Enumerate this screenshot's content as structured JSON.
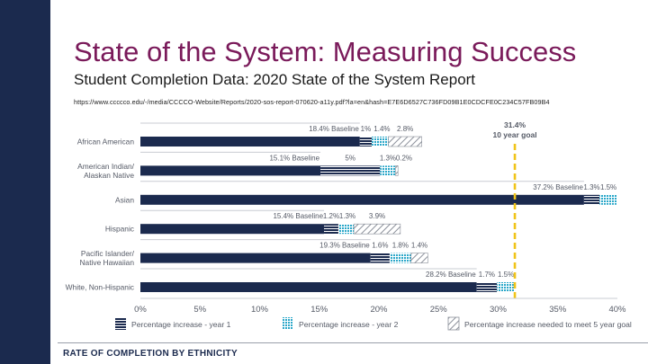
{
  "slide": {
    "title": "State of the System: Measuring Success",
    "subtitle": "Student Completion Data: 2020 State of the System Report",
    "url": "https://www.ccccco.edu/-/media/CCCCO-Website/Reports/2020-sos-report-070620-a11y.pdf?la=en&hash=E7E6D6527C736FD09B1E0CDCFE0C234C57FB09B4",
    "footer": "RATE OF COMPLETION BY ETHNICITY"
  },
  "colors": {
    "baseline": "#1b2a4e",
    "year1": "#1b2a4e",
    "year2": "#2aa7c9",
    "needed": "#8a8f99",
    "goal_line": "#f0c419",
    "text": "#555a66"
  },
  "chart_data": {
    "type": "bar",
    "orientation": "horizontal",
    "stacked": true,
    "categories": [
      "African American",
      "American Indian/ Alaskan Native",
      "Asian",
      "Hispanic",
      "Pacific Islander/ Native Hawaiian",
      "White, Non-Hispanic"
    ],
    "baseline": {
      "values": [
        18.4,
        15.1,
        37.2,
        15.4,
        19.3,
        28.2
      ],
      "labels": [
        "18.4% Baseline",
        "15.1% Baseline",
        "37.2% Baseline",
        "15.4% Baseline",
        "19.3% Baseline",
        "28.2% Baseline"
      ]
    },
    "series": [
      {
        "name": "Percentage increase - year 1",
        "values": [
          1.0,
          5.0,
          1.3,
          1.2,
          1.6,
          1.7
        ],
        "labels": [
          "1%",
          "5%",
          "1.3%",
          "1.2%",
          "1.6%",
          "1.7%"
        ]
      },
      {
        "name": "Percentage increase - year 2",
        "values": [
          1.4,
          1.3,
          1.5,
          1.3,
          1.8,
          1.5
        ],
        "labels": [
          "1.4%",
          "1.3%",
          "1.5%",
          "1.3%",
          "1.8%",
          "1.5%"
        ]
      },
      {
        "name": "Percentage increase needed to meet 5 year goal",
        "values": [
          2.8,
          0.2,
          0,
          3.9,
          1.4,
          0
        ],
        "labels": [
          "2.8%",
          "0.2%",
          "",
          "3.9%",
          "1.4%",
          ""
        ]
      }
    ],
    "goal": {
      "value": 31.4,
      "label_value": "31.4%",
      "label_text": "10 year goal"
    },
    "xlim": [
      0,
      40
    ],
    "x_ticks": [
      0,
      5,
      10,
      15,
      20,
      25,
      30,
      35,
      40
    ],
    "x_tick_labels": [
      "0%",
      "5%",
      "10%",
      "15%",
      "20%",
      "25%",
      "30%",
      "35%",
      "40%"
    ],
    "grid": false,
    "legend_position": "bottom"
  }
}
